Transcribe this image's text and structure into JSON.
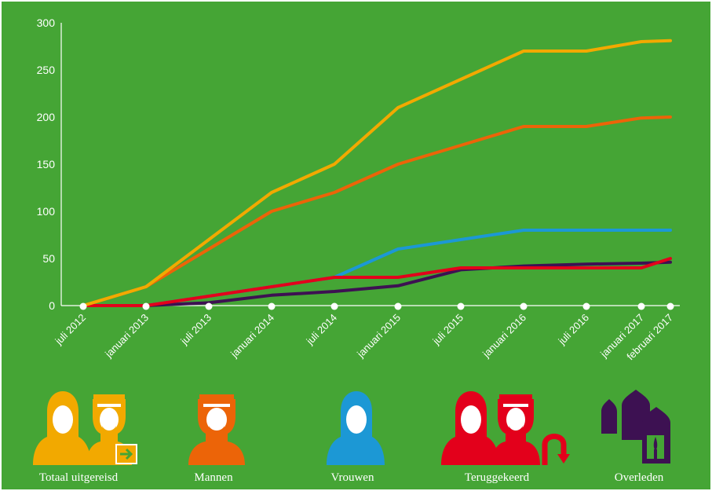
{
  "chart_data": {
    "type": "line",
    "title": "",
    "xlabel": "",
    "ylabel": "",
    "ylim": [
      0,
      300
    ],
    "yticks": [
      "0",
      "50",
      "100",
      "150",
      "200",
      "250",
      "300"
    ],
    "categories": [
      "juli 2012",
      "januari 2013",
      "juli 2013",
      "januari 2014",
      "juli 2014",
      "januari 2015",
      "juli 2015",
      "januari 2016",
      "juli 2016",
      "januari 2017",
      "februari 2017"
    ],
    "grid": false,
    "legend_position": "bottom",
    "series": [
      {
        "name": "Totaal uitgereisd",
        "color": "#f2a900",
        "values": [
          0,
          20,
          70,
          120,
          150,
          210,
          240,
          270,
          270,
          280,
          281
        ]
      },
      {
        "name": "Mannen",
        "color": "#ec6408",
        "values": [
          0,
          20,
          60,
          100,
          120,
          150,
          170,
          190,
          190,
          199,
          200
        ]
      },
      {
        "name": "Vrouwen",
        "color": "#1c98d5",
        "values": [
          0,
          0,
          10,
          20,
          30,
          60,
          70,
          80,
          80,
          80,
          80
        ]
      },
      {
        "name": "Teruggekeerd",
        "color": "#e3001b",
        "values": [
          0,
          0,
          10,
          20,
          30,
          30,
          40,
          40,
          40,
          40,
          50
        ]
      },
      {
        "name": "Overleden",
        "color": "#3d1152",
        "values": [
          0,
          0,
          3,
          11,
          15,
          21,
          38,
          42,
          44,
          45,
          46
        ]
      }
    ]
  }
}
